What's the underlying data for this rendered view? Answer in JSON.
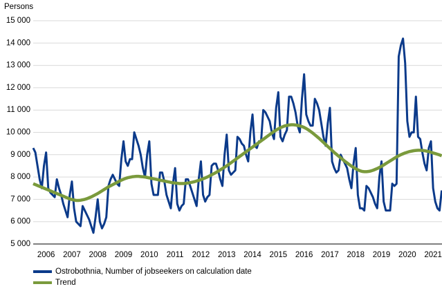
{
  "chart_data": {
    "type": "line",
    "y_label": "Persons",
    "categories": [
      null,
      null,
      null,
      null,
      null,
      null,
      "2006",
      null,
      null,
      null,
      null,
      null,
      null,
      null,
      null,
      null,
      null,
      null,
      "2007",
      null,
      null,
      null,
      null,
      null,
      null,
      null,
      null,
      null,
      null,
      null,
      "2008",
      null,
      null,
      null,
      null,
      null,
      null,
      null,
      null,
      null,
      null,
      null,
      "2009",
      null,
      null,
      null,
      null,
      null,
      null,
      null,
      null,
      null,
      null,
      null,
      "2010",
      null,
      null,
      null,
      null,
      null,
      null,
      null,
      null,
      null,
      null,
      null,
      "2011",
      null,
      null,
      null,
      null,
      null,
      null,
      null,
      null,
      null,
      null,
      null,
      "2012",
      null,
      null,
      null,
      null,
      null,
      null,
      null,
      null,
      null,
      null,
      null,
      "2013",
      null,
      null,
      null,
      null,
      null,
      null,
      null,
      null,
      null,
      null,
      null,
      "2014",
      null,
      null,
      null,
      null,
      null,
      null,
      null,
      null,
      null,
      null,
      null,
      "2015",
      null,
      null,
      null,
      null,
      null,
      null,
      null,
      null,
      null,
      null,
      null,
      "2016",
      null,
      null,
      null,
      null,
      null,
      null,
      null,
      null,
      null,
      null,
      null,
      "2017",
      null,
      null,
      null,
      null,
      null,
      null,
      null,
      null,
      null,
      null,
      null,
      "2018",
      null,
      null,
      null,
      null,
      null,
      null,
      null,
      null,
      null,
      null,
      null,
      "2019",
      null,
      null,
      null,
      null,
      null,
      null,
      null,
      null,
      null,
      null,
      null,
      "2020",
      null,
      null,
      null,
      null,
      null,
      null,
      null,
      null,
      null,
      null,
      null,
      "2021",
      null,
      null,
      null,
      null
    ],
    "series": [
      {
        "name": "Ostrobothnia, Number of jobseekers on calculation date",
        "color": "#0b3a8a",
        "width": 3,
        "values": [
          9300,
          9100,
          8500,
          7900,
          7500,
          8500,
          9100,
          7500,
          7300,
          7200,
          7100,
          7900,
          7500,
          7200,
          6800,
          6500,
          6200,
          7200,
          7800,
          6600,
          6000,
          5900,
          5800,
          6700,
          6500,
          6300,
          6100,
          5800,
          5500,
          6200,
          7000,
          6000,
          5700,
          5900,
          6200,
          7600,
          7900,
          8100,
          7900,
          7700,
          7600,
          8800,
          9600,
          8700,
          8500,
          8800,
          8800,
          10000,
          9700,
          9400,
          9000,
          8400,
          8000,
          9000,
          9600,
          7700,
          7200,
          7200,
          7200,
          8200,
          8200,
          7800,
          7200,
          6900,
          6600,
          7700,
          8400,
          6800,
          6500,
          6700,
          6800,
          7900,
          7900,
          7600,
          7300,
          7000,
          6700,
          7900,
          8700,
          7200,
          6900,
          7100,
          7200,
          8500,
          8600,
          8600,
          8300,
          7900,
          7600,
          9000,
          9900,
          8300,
          8100,
          8200,
          8300,
          9800,
          9700,
          9500,
          9400,
          9000,
          8700,
          10000,
          10800,
          9400,
          9300,
          9600,
          9600,
          11000,
          10900,
          10700,
          10500,
          10000,
          9700,
          11100,
          11800,
          9800,
          9600,
          9900,
          10100,
          11600,
          11600,
          11300,
          10900,
          10300,
          10000,
          11500,
          12600,
          10800,
          10500,
          10300,
          10300,
          11500,
          11300,
          11000,
          10400,
          9800,
          9400,
          10400,
          11100,
          8700,
          8400,
          8200,
          8300,
          9000,
          8800,
          8600,
          8400,
          7900,
          7500,
          8600,
          9300,
          7200,
          6600,
          6600,
          6500,
          7600,
          7500,
          7300,
          7100,
          6800,
          6600,
          8000,
          8700,
          6900,
          6500,
          6500,
          6500,
          7700,
          7600,
          7700,
          13400,
          13900,
          14200,
          13100,
          10500,
          9800,
          10000,
          10000,
          11600,
          9800,
          9700,
          9100,
          8600,
          8300,
          9300,
          9600,
          7500,
          6900,
          6600,
          6500,
          7400
        ]
      },
      {
        "name": "Trend",
        "color": "#7a9a3c",
        "width": 4.5,
        "values": [
          7700,
          7660,
          7620,
          7580,
          7540,
          7500,
          7460,
          7420,
          7380,
          7340,
          7300,
          7260,
          7220,
          7180,
          7140,
          7100,
          7060,
          7020,
          6990,
          6970,
          6950,
          6950,
          6960,
          6980,
          7000,
          7030,
          7070,
          7110,
          7160,
          7210,
          7260,
          7320,
          7380,
          7440,
          7500,
          7560,
          7610,
          7660,
          7710,
          7760,
          7810,
          7860,
          7900,
          7940,
          7970,
          7990,
          8010,
          8020,
          8030,
          8030,
          8020,
          8010,
          8000,
          7980,
          7960,
          7940,
          7920,
          7900,
          7880,
          7860,
          7840,
          7820,
          7800,
          7780,
          7760,
          7740,
          7730,
          7720,
          7710,
          7710,
          7710,
          7720,
          7730,
          7750,
          7770,
          7790,
          7820,
          7850,
          7880,
          7920,
          7960,
          8000,
          8050,
          8100,
          8150,
          8200,
          8260,
          8320,
          8380,
          8440,
          8500,
          8570,
          8640,
          8710,
          8780,
          8850,
          8920,
          8990,
          9060,
          9130,
          9200,
          9270,
          9340,
          9410,
          9480,
          9550,
          9620,
          9690,
          9760,
          9830,
          9900,
          9970,
          10040,
          10100,
          10160,
          10210,
          10250,
          10290,
          10310,
          10330,
          10340,
          10340,
          10330,
          10310,
          10290,
          10260,
          10220,
          10170,
          10110,
          10040,
          9970,
          9890,
          9810,
          9730,
          9640,
          9550,
          9460,
          9370,
          9280,
          9190,
          9100,
          9020,
          8940,
          8860,
          8780,
          8700,
          8630,
          8560,
          8490,
          8430,
          8370,
          8320,
          8280,
          8250,
          8240,
          8240,
          8250,
          8270,
          8300,
          8340,
          8380,
          8430,
          8480,
          8540,
          8600,
          8660,
          8720,
          8780,
          8840,
          8900,
          8950,
          9000,
          9040,
          9080,
          9110,
          9140,
          9160,
          9180,
          9190,
          9200,
          9200,
          9190,
          9180,
          9160,
          9140,
          9110,
          9080,
          9050,
          9020,
          8990,
          8950
        ]
      }
    ],
    "ylim": [
      5000,
      15000
    ],
    "yticks": [
      {
        "value": 5000,
        "label": "5 000"
      },
      {
        "value": 6000,
        "label": "6 000"
      },
      {
        "value": 7000,
        "label": "7 000"
      },
      {
        "value": 8000,
        "label": "8 000"
      },
      {
        "value": 9000,
        "label": "9 000"
      },
      {
        "value": 10000,
        "label": "10 000"
      },
      {
        "value": 11000,
        "label": "11 000"
      },
      {
        "value": 12000,
        "label": "12 000"
      },
      {
        "value": 13000,
        "label": "13 000"
      },
      {
        "value": 14000,
        "label": "14 000"
      },
      {
        "value": 15000,
        "label": "15 000"
      }
    ],
    "grid": true
  }
}
